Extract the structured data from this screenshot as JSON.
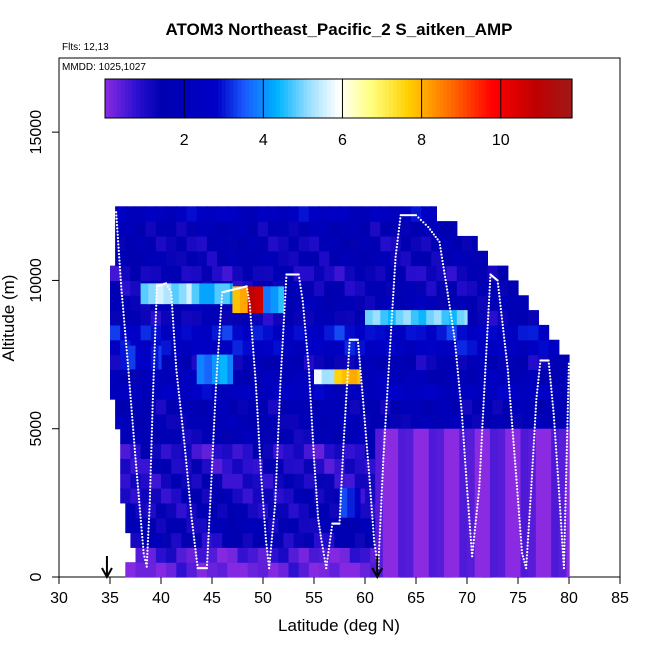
{
  "chart_data": {
    "type": "heatmap",
    "title": "ATOM3 Northeast_Pacific_2 S_aitken_AMP",
    "flights_label": "Flts: 12,13",
    "dates_label": "MMDD: 1025,1027",
    "xlabel": "Latitude (deg N)",
    "ylabel": "Altitude (m)",
    "xlim": [
      30,
      85
    ],
    "ylim": [
      0,
      17500
    ],
    "x_ticks": [
      30,
      35,
      40,
      45,
      50,
      55,
      60,
      65,
      70,
      75,
      80,
      85
    ],
    "x_tick_labels": [
      "30",
      "35",
      "40",
      "45",
      "50",
      "55",
      "60",
      "65",
      "70",
      "75",
      "80",
      "85"
    ],
    "y_ticks": [
      0,
      5000,
      10000,
      15000
    ],
    "y_tick_labels": [
      "0",
      "5000",
      "10000",
      "15000"
    ],
    "colorbar": {
      "range": [
        0,
        11.8
      ],
      "ticks": [
        2,
        4,
        6,
        8,
        10
      ],
      "tick_labels": [
        "2",
        "4",
        "6",
        "8",
        "10"
      ],
      "stops": [
        [
          0.0,
          "#8a2be2"
        ],
        [
          0.07,
          "#2a0fd0"
        ],
        [
          0.12,
          "#0000b0"
        ],
        [
          0.24,
          "#0000c8"
        ],
        [
          0.3,
          "#1a5cff"
        ],
        [
          0.37,
          "#00b4ff"
        ],
        [
          0.44,
          "#a0e0ff"
        ],
        [
          0.5,
          "#ffffff"
        ],
        [
          0.57,
          "#ffff80"
        ],
        [
          0.65,
          "#ffd000"
        ],
        [
          0.75,
          "#ff6000"
        ],
        [
          0.83,
          "#ff0000"
        ],
        [
          0.92,
          "#c00000"
        ],
        [
          1.0,
          "#a01818"
        ]
      ]
    },
    "base_value": 1.6,
    "grid_rows": [
      {
        "y0": 0,
        "y1": 500,
        "lat": [
          36.5,
          80
        ],
        "value": 0.2
      },
      {
        "y0": 500,
        "y1": 1000,
        "lat": [
          37.5,
          80
        ],
        "value": 0.5
      },
      {
        "y0": 1000,
        "y1": 1500,
        "lat": [
          37,
          80
        ],
        "value": 1.3
      },
      {
        "y0": 1500,
        "y1": 2000,
        "lat": [
          36.5,
          80
        ],
        "value": 1.5
      },
      {
        "y0": 2000,
        "y1": 2500,
        "lat": [
          36.5,
          80
        ],
        "value": 1.3
      },
      {
        "y0": 2500,
        "y1": 3000,
        "lat": [
          36,
          80
        ],
        "value": 1.2
      },
      {
        "y0": 3000,
        "y1": 3500,
        "lat": [
          36,
          80
        ],
        "value": 1.1
      },
      {
        "y0": 3500,
        "y1": 4000,
        "lat": [
          36,
          80
        ],
        "value": 1.0
      },
      {
        "y0": 4000,
        "y1": 4500,
        "lat": [
          36,
          80
        ],
        "value": 0.9
      },
      {
        "y0": 4500,
        "y1": 5000,
        "lat": [
          36,
          80
        ],
        "value": 1.6
      },
      {
        "y0": 5000,
        "y1": 5500,
        "lat": [
          35.5,
          80
        ],
        "value": 1.7
      },
      {
        "y0": 5500,
        "y1": 6000,
        "lat": [
          35.5,
          80
        ],
        "value": 1.6
      },
      {
        "y0": 6000,
        "y1": 6500,
        "lat": [
          35,
          80
        ],
        "value": 2.4
      },
      {
        "y0": 6500,
        "y1": 7000,
        "lat": [
          35,
          80
        ],
        "value": 1.9
      },
      {
        "y0": 7000,
        "y1": 7500,
        "lat": [
          35,
          80
        ],
        "value": 1.5
      },
      {
        "y0": 7500,
        "y1": 8000,
        "lat": [
          35,
          79
        ],
        "value": 2.6
      },
      {
        "y0": 8000,
        "y1": 8500,
        "lat": [
          35,
          78
        ],
        "value": 2.8
      },
      {
        "y0": 8500,
        "y1": 9000,
        "lat": [
          35,
          77
        ],
        "value": 1.4
      },
      {
        "y0": 9000,
        "y1": 9500,
        "lat": [
          35,
          76
        ],
        "value": 1.7
      },
      {
        "y0": 9500,
        "y1": 10000,
        "lat": [
          35,
          75
        ],
        "value": 1.4
      },
      {
        "y0": 10000,
        "y1": 10500,
        "lat": [
          35,
          74
        ],
        "value": 1.2
      },
      {
        "y0": 10500,
        "y1": 11000,
        "lat": [
          35.5,
          72
        ],
        "value": 1.5
      },
      {
        "y0": 11000,
        "y1": 11500,
        "lat": [
          35.5,
          71
        ],
        "value": 1.4
      },
      {
        "y0": 11500,
        "y1": 12000,
        "lat": [
          35.5,
          69
        ],
        "value": 1.6
      },
      {
        "y0": 12000,
        "y1": 12500,
        "lat": [
          35.5,
          67
        ],
        "value": 2.4
      }
    ],
    "highlights": [
      {
        "lat": [
          38,
          43
        ],
        "alt": [
          9200,
          9900
        ],
        "value": 5.2
      },
      {
        "lat": [
          43,
          47
        ],
        "alt": [
          9200,
          9900
        ],
        "value": 4.5
      },
      {
        "lat": [
          47,
          48.5
        ],
        "alt": [
          8900,
          9800
        ],
        "value": 8.2
      },
      {
        "lat": [
          48.5,
          50
        ],
        "alt": [
          8900,
          9800
        ],
        "value": 10.5
      },
      {
        "lat": [
          50,
          52
        ],
        "alt": [
          8900,
          9800
        ],
        "value": 4.2
      },
      {
        "lat": [
          60,
          70
        ],
        "alt": [
          8500,
          9000
        ],
        "value": 4.8
      },
      {
        "lat": [
          43.5,
          47
        ],
        "alt": [
          6500,
          7500
        ],
        "value": 4.0
      },
      {
        "lat": [
          55,
          57
        ],
        "alt": [
          6500,
          7000
        ],
        "value": 5.5
      },
      {
        "lat": [
          57,
          58.5
        ],
        "alt": [
          6500,
          7000
        ],
        "value": 7.5
      },
      {
        "lat": [
          58.5,
          59.5
        ],
        "alt": [
          6500,
          7000
        ],
        "value": 8.2
      },
      {
        "lat": [
          36,
          40
        ],
        "alt": [
          7000,
          7800
        ],
        "value": 2.9
      },
      {
        "lat": [
          57.5,
          59.5
        ],
        "alt": [
          2000,
          3000
        ],
        "value": 3.0
      },
      {
        "lat": [
          61,
          80
        ],
        "alt": [
          0,
          5000
        ],
        "value": 0.2
      }
    ],
    "flight_track": [
      [
        35.6,
        12300
      ],
      [
        36.1,
        9800
      ],
      [
        36.8,
        7000
      ],
      [
        37.5,
        4000
      ],
      [
        38.0,
        2000
      ],
      [
        38.3,
        800
      ],
      [
        38.6,
        350
      ],
      [
        38.9,
        2500
      ],
      [
        39.2,
        6000
      ],
      [
        39.6,
        9800
      ],
      [
        40.5,
        9900
      ],
      [
        41.0,
        9600
      ],
      [
        41.5,
        7000
      ],
      [
        42.3,
        4500
      ],
      [
        43.0,
        2000
      ],
      [
        43.6,
        300
      ],
      [
        44.5,
        300
      ],
      [
        44.9,
        3000
      ],
      [
        45.4,
        6500
      ],
      [
        46.0,
        9600
      ],
      [
        48.4,
        9800
      ],
      [
        48.7,
        9200
      ],
      [
        49.3,
        6500
      ],
      [
        49.8,
        3500
      ],
      [
        50.3,
        1200
      ],
      [
        50.6,
        300
      ],
      [
        51.2,
        2500
      ],
      [
        51.7,
        6500
      ],
      [
        52.3,
        10200
      ],
      [
        53.5,
        10200
      ],
      [
        53.9,
        9300
      ],
      [
        54.5,
        7000
      ],
      [
        55.0,
        4000
      ],
      [
        55.4,
        2000
      ],
      [
        55.7,
        1300
      ],
      [
        56.2,
        300
      ],
      [
        56.8,
        1800
      ],
      [
        57.5,
        1800
      ],
      [
        57.9,
        4500
      ],
      [
        58.5,
        8000
      ],
      [
        59.3,
        8000
      ],
      [
        59.8,
        6000
      ],
      [
        60.4,
        3500
      ],
      [
        60.9,
        1200
      ],
      [
        61.3,
        300
      ],
      [
        61.8,
        4000
      ],
      [
        62.5,
        8000
      ],
      [
        63.0,
        10800
      ],
      [
        63.5,
        12200
      ],
      [
        65.0,
        12200
      ],
      [
        66.2,
        11800
      ],
      [
        67.3,
        11300
      ],
      [
        68.0,
        9800
      ],
      [
        68.8,
        8000
      ],
      [
        69.5,
        5500
      ],
      [
        70.0,
        3000
      ],
      [
        70.5,
        700
      ],
      [
        71.2,
        3000
      ],
      [
        71.8,
        7000
      ],
      [
        72.3,
        10200
      ],
      [
        73.0,
        10000
      ],
      [
        74.0,
        7000
      ],
      [
        74.8,
        3500
      ],
      [
        75.4,
        800
      ],
      [
        75.8,
        300
      ],
      [
        76.3,
        3000
      ],
      [
        76.8,
        6000
      ],
      [
        77.2,
        7300
      ],
      [
        78.0,
        7300
      ],
      [
        78.5,
        5500
      ],
      [
        79.0,
        3000
      ],
      [
        79.5,
        300
      ],
      [
        80.0,
        7300
      ]
    ],
    "arrows": [
      34.7,
      61.2
    ]
  }
}
